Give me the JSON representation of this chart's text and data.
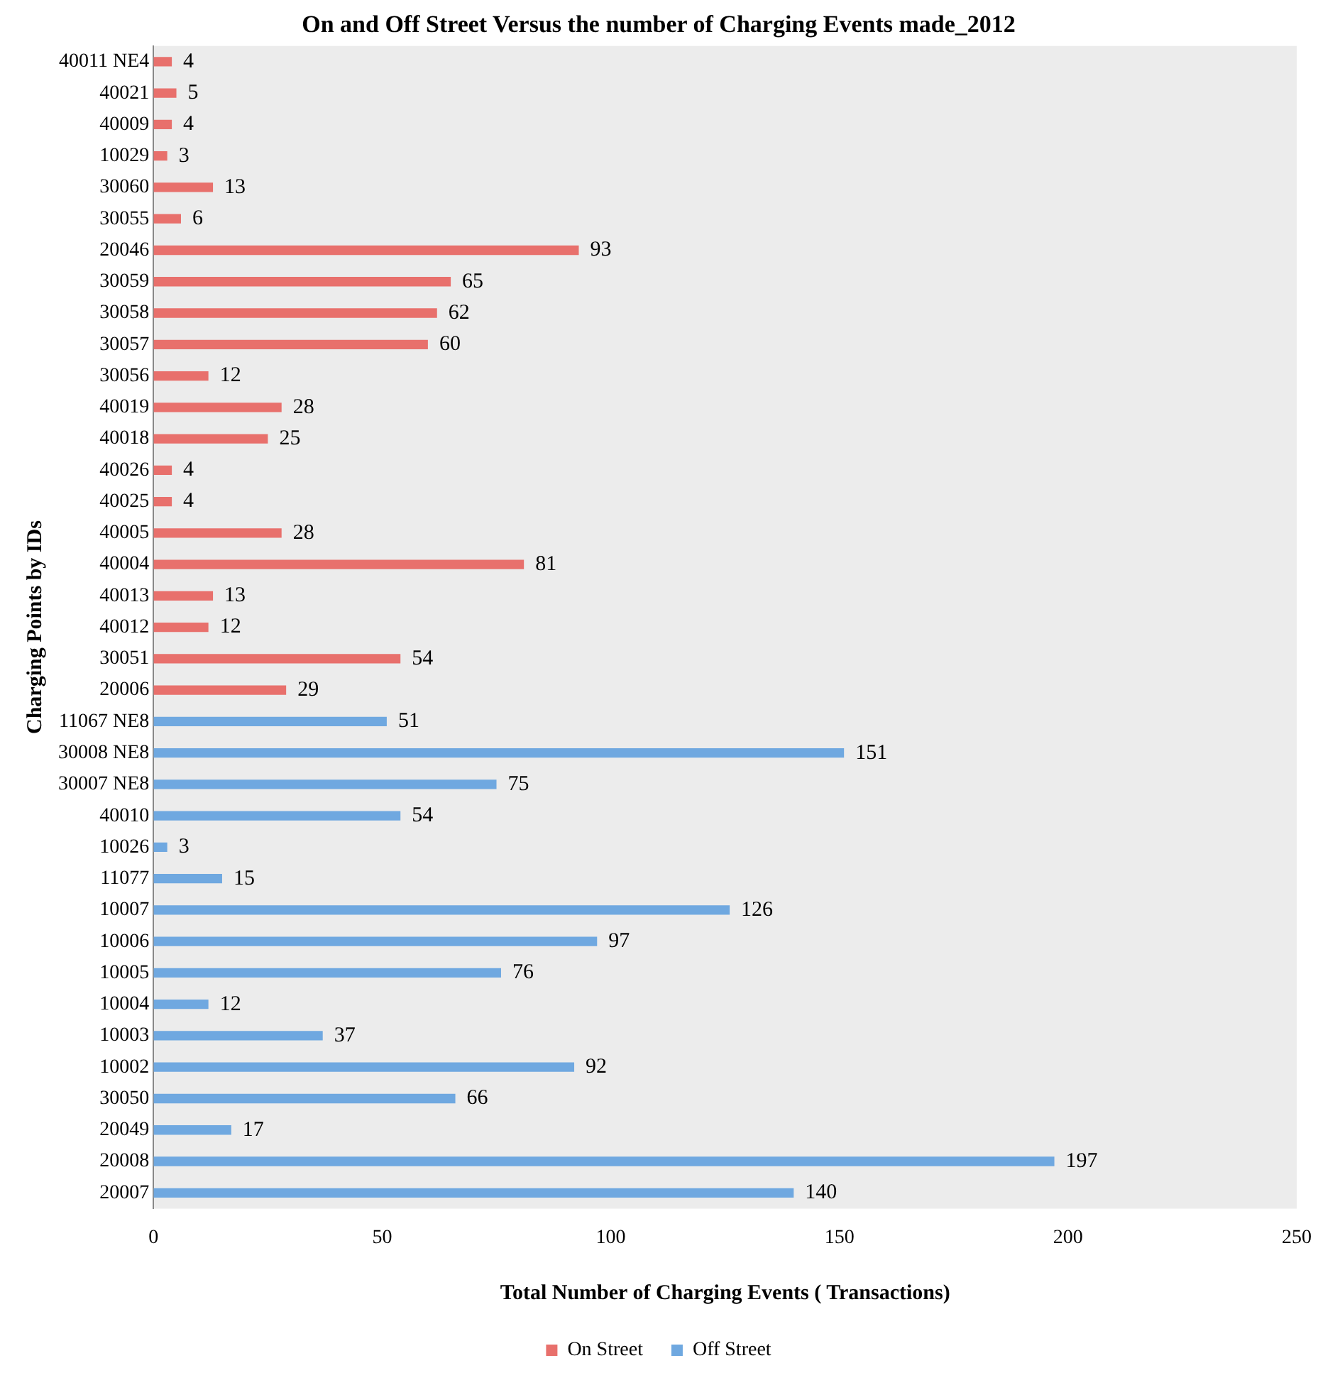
{
  "chart_data": {
    "type": "bar",
    "orientation": "horizontal",
    "title": "On and Off Street Versus the number of Charging Events made_2012",
    "xlabel": "Total Number of Charging Events ( Transactions)",
    "ylabel": "Charging Points by IDs",
    "categories": [
      "40011 NE4",
      "40021",
      "40009",
      "10029",
      "30060",
      "30055",
      "20046",
      "30059",
      "30058",
      "30057",
      "30056",
      "40019",
      "40018",
      "40026",
      "40025",
      "40005",
      "40004",
      "40013",
      "40012",
      "30051",
      "20006",
      "11067 NE8",
      "30008 NE8",
      "30007 NE8",
      "40010",
      "10026",
      "11077",
      "10007",
      "10006",
      "10005",
      "10004",
      "10003",
      "10002",
      "30050",
      "20049",
      "20008",
      "20007"
    ],
    "series": [
      {
        "name": "On Street",
        "color": "#e8706c",
        "values": [
          4,
          5,
          4,
          3,
          13,
          6,
          93,
          65,
          62,
          60,
          12,
          28,
          25,
          4,
          4,
          28,
          81,
          13,
          12,
          54,
          29,
          null,
          null,
          null,
          null,
          null,
          null,
          null,
          null,
          null,
          null,
          null,
          null,
          null,
          null,
          null,
          null
        ]
      },
      {
        "name": "Off Street",
        "color": "#6fa8e0",
        "values": [
          null,
          null,
          null,
          null,
          null,
          null,
          null,
          null,
          null,
          null,
          null,
          null,
          null,
          null,
          null,
          null,
          null,
          null,
          null,
          null,
          null,
          51,
          151,
          75,
          54,
          3,
          15,
          126,
          97,
          76,
          12,
          37,
          92,
          66,
          17,
          197,
          140
        ]
      }
    ],
    "xlim": [
      0,
      250
    ],
    "xticks": [
      0,
      50,
      100,
      150,
      200,
      250
    ],
    "grid": false,
    "legend": "bottom",
    "data_labels": true
  }
}
